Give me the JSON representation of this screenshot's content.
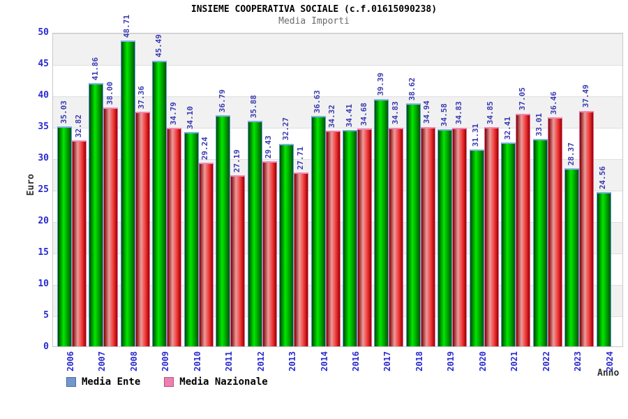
{
  "header": {
    "title": "INSIEME COOPERATIVA SOCIALE (c.f.01615090238)",
    "subtitle": "Media Importi"
  },
  "chart_data": {
    "type": "bar",
    "title": "INSIEME COOPERATIVA SOCIALE (c.f.01615090238)",
    "subtitle": "Media Importi",
    "xlabel": "Anno",
    "ylabel": "Euro",
    "ylim": [
      0,
      50
    ],
    "ytick_step": 5,
    "grid": true,
    "legend_position": "bottom-left",
    "value_label_format": "2-decimals",
    "categories": [
      "2006",
      "2007",
      "2008",
      "2009",
      "2010",
      "2011",
      "2012",
      "2013",
      "2014",
      "2016",
      "2017",
      "2018",
      "2019",
      "2020",
      "2021",
      "2022",
      "2023",
      "2024"
    ],
    "series": [
      {
        "name": "Media Ente",
        "swatch_color": "#7296ce",
        "swatch_border": "#4a699c",
        "bar_style": "green",
        "values": [
          35.03,
          41.86,
          48.71,
          45.49,
          34.1,
          36.79,
          35.88,
          32.27,
          36.63,
          34.41,
          39.39,
          38.62,
          34.58,
          31.31,
          32.41,
          33.01,
          28.37,
          24.56
        ]
      },
      {
        "name": "Media Nazionale",
        "swatch_color": "#ef7fae",
        "swatch_border": "#b05580",
        "bar_style": "red",
        "values": [
          32.82,
          38.0,
          37.36,
          34.79,
          29.24,
          27.19,
          29.43,
          27.71,
          34.32,
          34.68,
          34.83,
          34.94,
          34.83,
          34.85,
          37.05,
          36.46,
          37.49,
          null
        ]
      }
    ]
  },
  "colors": {
    "tick_label": "#2a2ad0",
    "value_label": "#3a3ab2",
    "axis_title": "#303030",
    "plot_border": "#c9c9c9",
    "band": "#f1f1f1",
    "green_cap": "#7fb2e5",
    "red_cap": "#ef86b7"
  }
}
